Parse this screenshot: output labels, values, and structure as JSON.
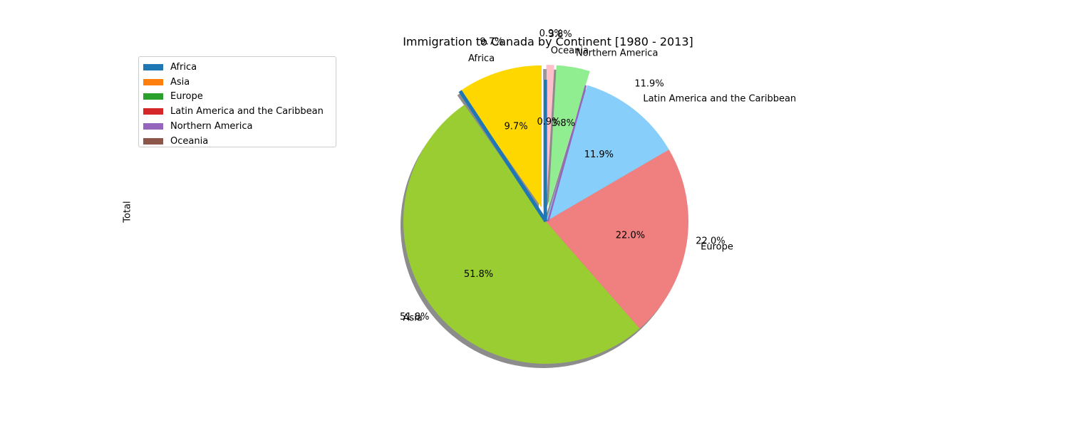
{
  "chart_data": {
    "type": "pie",
    "title": "Immigration to Canada by Continent [1980 - 2013]",
    "ylabel": "Total",
    "categories": [
      "Africa",
      "Asia",
      "Europe",
      "Latin America and the Caribbean",
      "Northern America",
      "Oceania"
    ],
    "values": [
      9.7,
      51.8,
      22.0,
      11.9,
      3.8,
      0.9
    ],
    "value_labels": [
      "9.7%",
      "51.8%",
      "22.0%",
      "11.9%",
      "3.8%",
      "0.9%"
    ],
    "slice_colors": [
      "#ffd700",
      "#9acd32",
      "#f08080",
      "#87cefa",
      "#90ee90",
      "#ffc0cb"
    ],
    "explode": [
      0.1,
      0,
      0,
      0,
      0.1,
      0.1
    ],
    "start_angle_deg": 90,
    "shadow": true,
    "legend": {
      "placement": "upper-left",
      "entries": [
        "Africa",
        "Asia",
        "Europe",
        "Latin America and the Caribbean",
        "Northern America",
        "Oceania"
      ],
      "colors": [
        "#1f77b4",
        "#ff7f0e",
        "#2ca02c",
        "#d62728",
        "#9467bd",
        "#8c564b"
      ]
    },
    "overlay_bar_colors": [
      "#1f77b4",
      "#ff7f0e",
      "#2ca02c",
      "#d62728",
      "#9467bd",
      "#8c564b"
    ]
  }
}
